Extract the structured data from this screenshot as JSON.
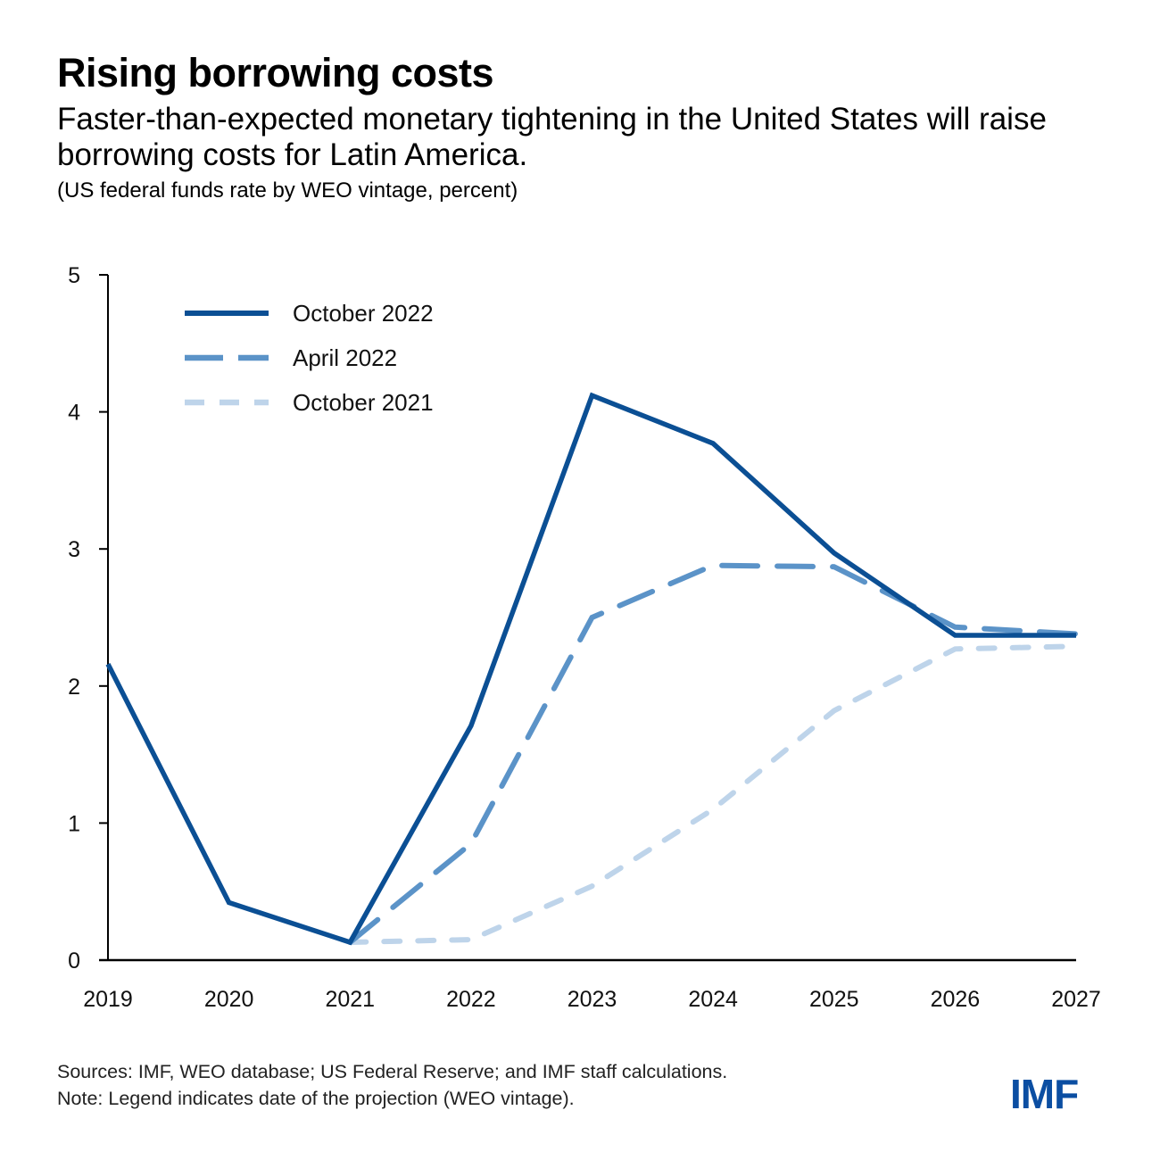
{
  "header": {
    "title": "Rising borrowing costs",
    "subtitle": "Faster-than-expected monetary tightening in the United States will raise borrowing costs for Latin America.",
    "unit_note": "(US federal funds rate by WEO vintage, percent)"
  },
  "footer": {
    "sources": "Sources: IMF, WEO database; US Federal Reserve; and IMF staff calculations.",
    "note": "Note: Legend indicates date of the projection (WEO vintage).",
    "logo": "IMF"
  },
  "colors": {
    "dark_blue": "#0b4f94",
    "mid_blue": "#5b93c8",
    "light_blue": "#bed4ea",
    "logo_blue": "#0b4ea2"
  },
  "chart_data": {
    "type": "line",
    "title": "Rising borrowing costs",
    "xlabel": "",
    "ylabel": "",
    "x": [
      "2019",
      "2020",
      "2021",
      "2022",
      "2023",
      "2024",
      "2025",
      "2026",
      "2027"
    ],
    "ylim": [
      0,
      5
    ],
    "yticks": [
      "0",
      "1",
      "2",
      "3",
      "4",
      "5"
    ],
    "grid": false,
    "legend_position": "top-left",
    "series": [
      {
        "name": "October 2022",
        "style": "solid",
        "color": "#0b4f94",
        "values": [
          2.16,
          0.42,
          0.13,
          1.71,
          4.12,
          3.77,
          2.97,
          2.37,
          2.37
        ]
      },
      {
        "name": "April 2022",
        "style": "long-dash",
        "color": "#5b93c8",
        "values": [
          null,
          null,
          0.13,
          0.85,
          2.5,
          2.88,
          2.87,
          2.43,
          2.38
        ]
      },
      {
        "name": "October 2021",
        "style": "short-dash",
        "color": "#bed4ea",
        "values": [
          null,
          null,
          0.13,
          0.15,
          0.54,
          1.1,
          1.82,
          2.27,
          2.29
        ]
      }
    ]
  }
}
